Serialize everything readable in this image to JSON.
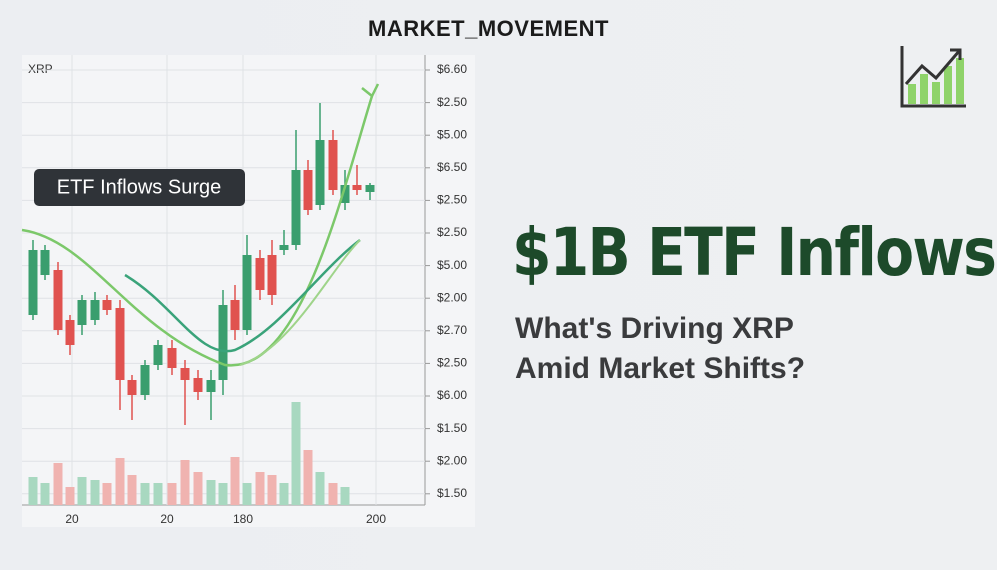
{
  "header": {
    "title": "MARKET_MOVEMENT"
  },
  "chart": {
    "symbol": "XRP",
    "annotation": "ETF Inflows Surge",
    "y_axis_labels": [
      "$6.60",
      "$2.50",
      "$5.00",
      "$6.50",
      "$2.50",
      "$2.50",
      "$5.00",
      "$2.00",
      "$2.70",
      "$2.50",
      "$6.00",
      "$1.50",
      "$2.00",
      "$1.50"
    ],
    "x_axis_labels": [
      "20",
      "20",
      "180",
      "200"
    ]
  },
  "headline": "$1B ETF Inflows",
  "subheadline": [
    "What's Driving XRP",
    "Amid Market Shifts?"
  ]
}
